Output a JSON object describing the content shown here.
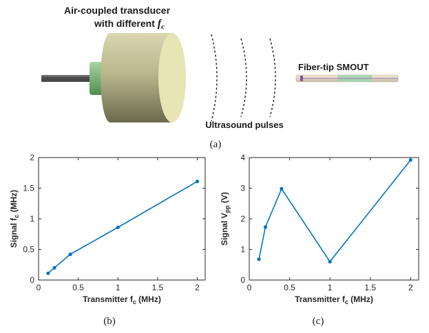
{
  "panel_a": {
    "transducer_label_line1": "Air-coupled transducer",
    "transducer_label_line2_prefix": "with different ",
    "transducer_label_symbol": "f",
    "transducer_label_subscript": "c",
    "pulses_label": "Ultrasound pulses",
    "fiber_label": "Fiber-tip SMOUT",
    "caption": "(a)"
  },
  "panel_b": {
    "caption": "(b)"
  },
  "panel_c": {
    "caption": "(c)"
  },
  "colors": {
    "series": "#0072BD"
  },
  "chart_data": [
    {
      "type": "line",
      "xlabel": "Transmitter f",
      "xlabel_sub": "c",
      "xlabel_unit": "(MHz)",
      "ylabel": "Signal f",
      "ylabel_sub": "c",
      "ylabel_unit": "(MHz)",
      "xlim": [
        0,
        2.1
      ],
      "ylim": [
        0,
        2
      ],
      "xticks": [
        "0",
        "0.5",
        "1",
        "1.5",
        "2"
      ],
      "xtick_values": [
        0,
        0.5,
        1,
        1.5,
        2
      ],
      "yticks": [
        "0",
        "0.5",
        "1",
        "1.5",
        "2"
      ],
      "ytick_values": [
        0,
        0.5,
        1,
        1.5,
        2
      ],
      "x": [
        0.12,
        0.2,
        0.4,
        1.0,
        2.0
      ],
      "y": [
        0.11,
        0.2,
        0.42,
        0.86,
        1.61
      ],
      "grid": false
    },
    {
      "type": "line",
      "xlabel": "Transmitter f",
      "xlabel_sub": "c",
      "xlabel_unit": "(MHz)",
      "ylabel": "Signal V",
      "ylabel_sub": "pp",
      "ylabel_unit": "(V)",
      "xlim": [
        0,
        2.1
      ],
      "ylim": [
        0,
        4
      ],
      "xticks": [
        "0",
        "0.5",
        "1",
        "1.5",
        "2"
      ],
      "xtick_values": [
        0,
        0.5,
        1,
        1.5,
        2
      ],
      "yticks": [
        "0",
        "1",
        "2",
        "3",
        "4"
      ],
      "ytick_values": [
        0,
        1,
        2,
        3,
        4
      ],
      "x": [
        0.12,
        0.2,
        0.4,
        1.0,
        2.0
      ],
      "y": [
        0.68,
        1.73,
        2.98,
        0.6,
        3.92
      ],
      "grid": false
    }
  ]
}
